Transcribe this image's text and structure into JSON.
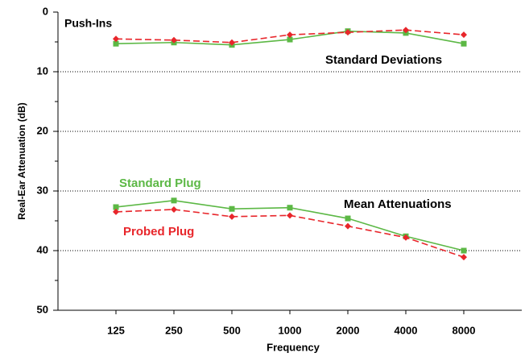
{
  "chart_data": {
    "type": "line",
    "ylabel": "Real-Ear Attenuation (dB)",
    "xlabel": "Frequency",
    "annotations": [
      "Push-Ins",
      "Standard Deviations",
      "Mean Attenuations"
    ],
    "categories": [
      "125",
      "250",
      "500",
      "1000",
      "2000",
      "4000",
      "8000"
    ],
    "series": [
      {
        "name": "Standard Plug",
        "color": "#5cb845",
        "dash": false,
        "marker": "square",
        "values": [
          32.7,
          31.6,
          33.0,
          32.8,
          34.6,
          37.6,
          40.0
        ]
      },
      {
        "name": "Probed Plug",
        "color": "#e8262b",
        "dash": true,
        "marker": "diamond",
        "values": [
          33.5,
          33.1,
          34.3,
          34.1,
          35.9,
          37.8,
          41.1
        ]
      },
      {
        "color": "#5cb845",
        "dash": false,
        "marker": "square",
        "values": [
          5.3,
          5.1,
          5.5,
          4.6,
          3.2,
          3.5,
          5.3
        ]
      },
      {
        "color": "#e8262b",
        "dash": true,
        "marker": "diamond",
        "values": [
          4.5,
          4.7,
          5.1,
          3.8,
          3.4,
          3.0,
          3.8
        ]
      }
    ],
    "ylim": [
      0,
      50
    ],
    "y_inverted": true,
    "yticks": [
      0,
      10,
      20,
      30,
      40,
      50
    ],
    "yticks_minor": [
      5,
      15,
      25,
      35,
      45
    ],
    "grid": true
  }
}
